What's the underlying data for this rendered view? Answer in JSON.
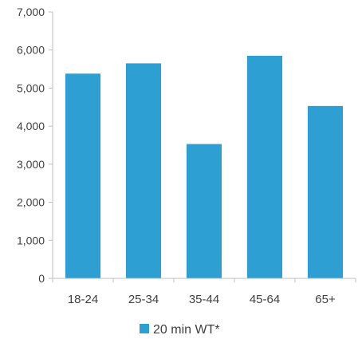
{
  "chart_data": {
    "type": "bar",
    "title": "",
    "xlabel": "",
    "ylabel": "",
    "categories": [
      "18-24",
      "25-34",
      "35-44",
      "45-64",
      "65+"
    ],
    "series": [
      {
        "name": "20 min WT*",
        "values": [
          5380,
          5650,
          3530,
          5850,
          4530
        ],
        "color": "#2e9fd2"
      }
    ],
    "ylim": [
      0,
      7000
    ],
    "yticks": [
      0,
      1000,
      2000,
      3000,
      4000,
      5000,
      6000,
      7000
    ],
    "ytick_labels": [
      "0",
      "1,000",
      "2,000",
      "3,000",
      "4,000",
      "5,000",
      "6,000",
      "7,000"
    ],
    "grid": false,
    "legend_position": "bottom"
  }
}
